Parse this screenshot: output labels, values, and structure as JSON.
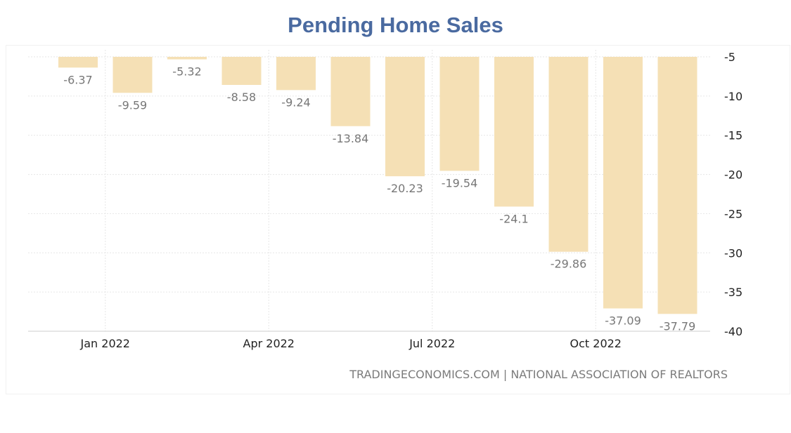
{
  "title": "Pending Home Sales",
  "source": "TRADINGECONOMICS.COM | NATIONAL ASSOCIATION OF REALTORS",
  "colors": {
    "bar": "#f5e0b5",
    "title": "#4a6aa0",
    "label": "#777777",
    "axis": "#222222"
  },
  "chart_data": {
    "type": "bar",
    "title": "Pending Home Sales",
    "values": [
      -6.37,
      -9.59,
      -5.32,
      -8.58,
      -9.24,
      -13.84,
      -20.23,
      -19.54,
      -24.1,
      -29.86,
      -37.09,
      -37.79
    ],
    "x_tick_labels": [
      {
        "label": "Jan 2022",
        "after_bar": 1
      },
      {
        "label": "Apr 2022",
        "after_bar": 4
      },
      {
        "label": "Jul 2022",
        "after_bar": 7
      },
      {
        "label": "Oct 2022",
        "after_bar": 10
      }
    ],
    "y_ticks": [
      -5,
      -10,
      -15,
      -20,
      -25,
      -30,
      -35,
      -40
    ],
    "ylim": [
      -40,
      -5
    ],
    "y_axis_position": "right",
    "grid": true,
    "legend": "none"
  }
}
